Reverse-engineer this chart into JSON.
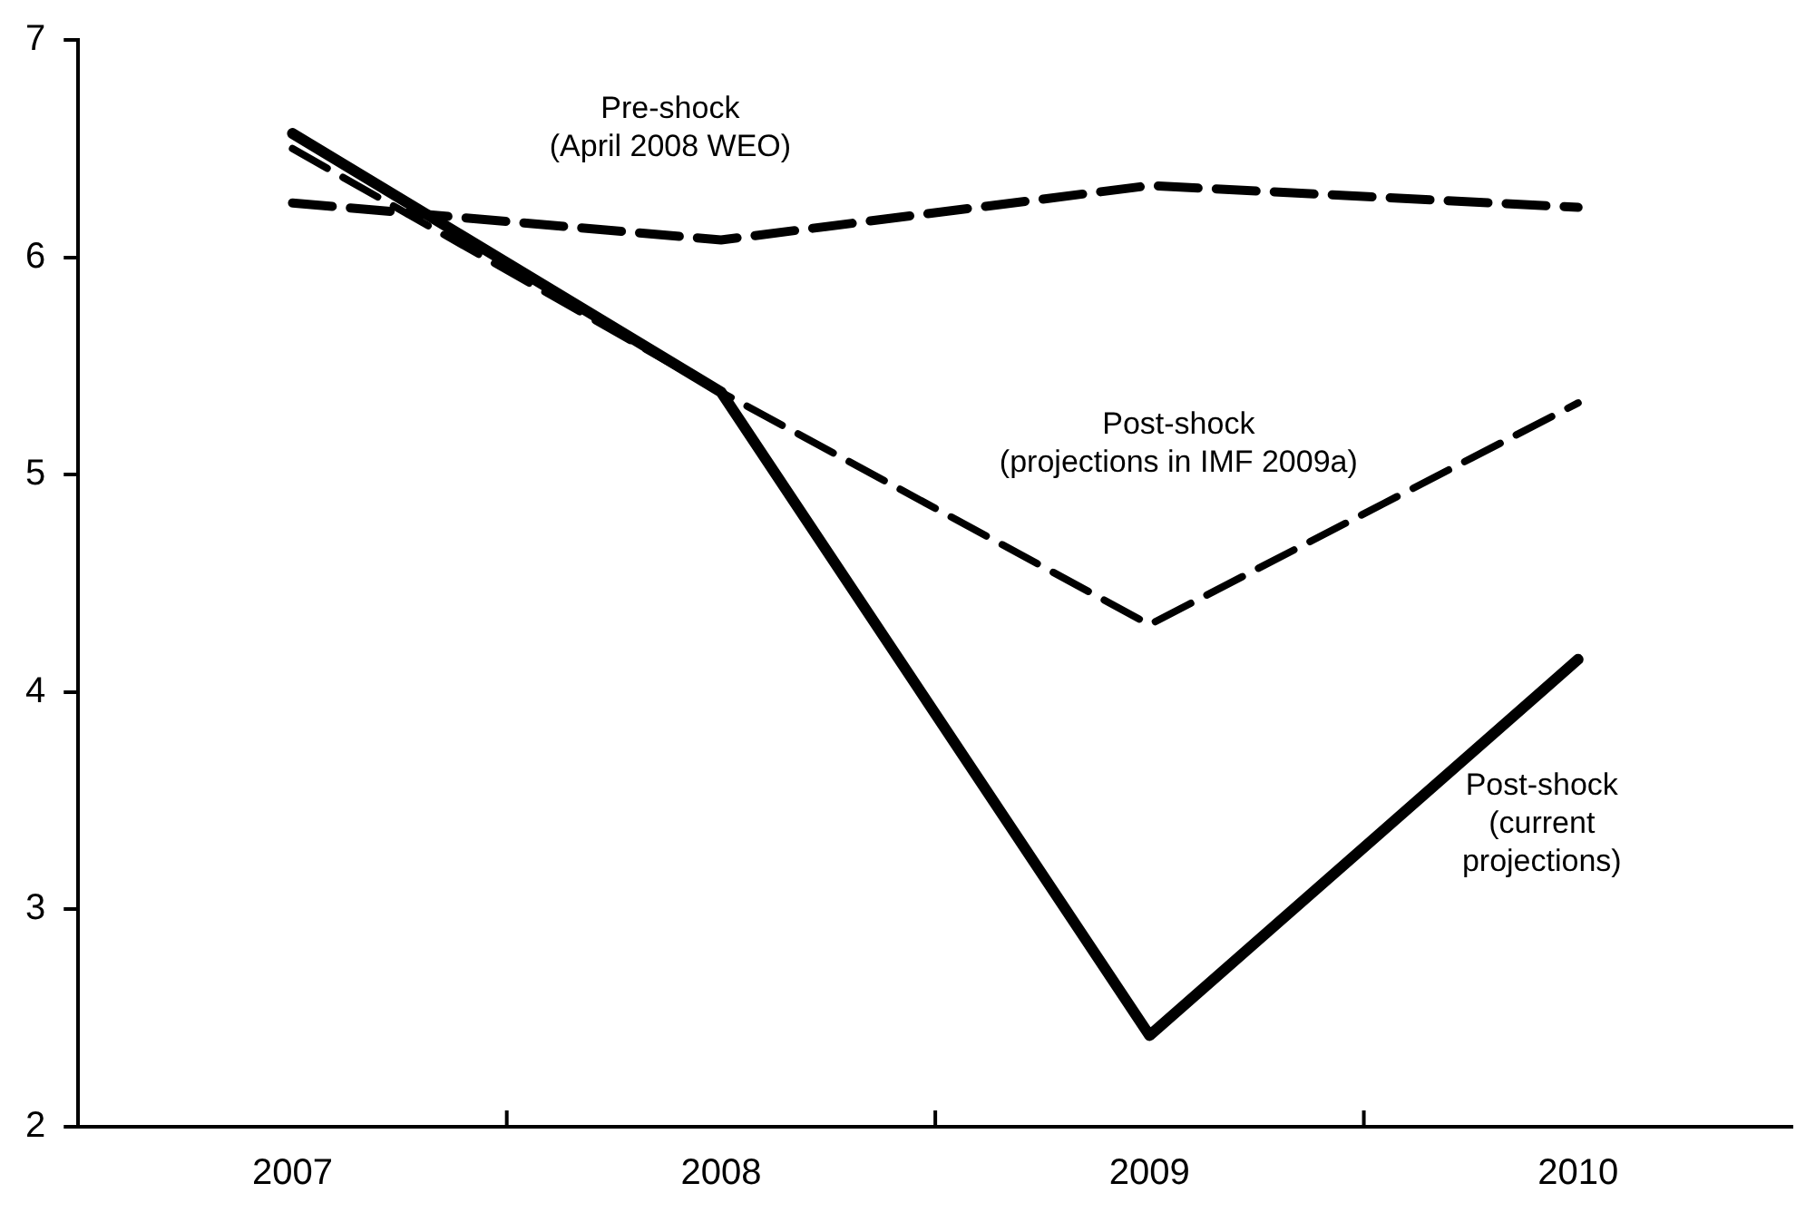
{
  "chart_data": {
    "type": "line",
    "categories": [
      "2007",
      "2008",
      "2009",
      "2010"
    ],
    "series": [
      {
        "name": "Pre-shock\n(April 2008 WEO)",
        "color": "#000000",
        "line_style": "dashed",
        "values": [
          6.25,
          6.08,
          6.33,
          6.23
        ]
      },
      {
        "name": "Post-shock\n(projections in IMF 2009a)",
        "color": "#000000",
        "line_style": "dashed",
        "values": [
          6.5,
          5.38,
          4.31,
          5.33
        ]
      },
      {
        "name": "Post-shock\n(current\nprojections)",
        "color": "#000000",
        "line_style": "solid",
        "values": [
          6.57,
          5.38,
          2.42,
          4.15
        ]
      }
    ],
    "ylim": [
      2,
      7
    ],
    "yticks": [
      2,
      3,
      4,
      5,
      6,
      7
    ],
    "grid": false,
    "legend": false,
    "marker": "none"
  }
}
